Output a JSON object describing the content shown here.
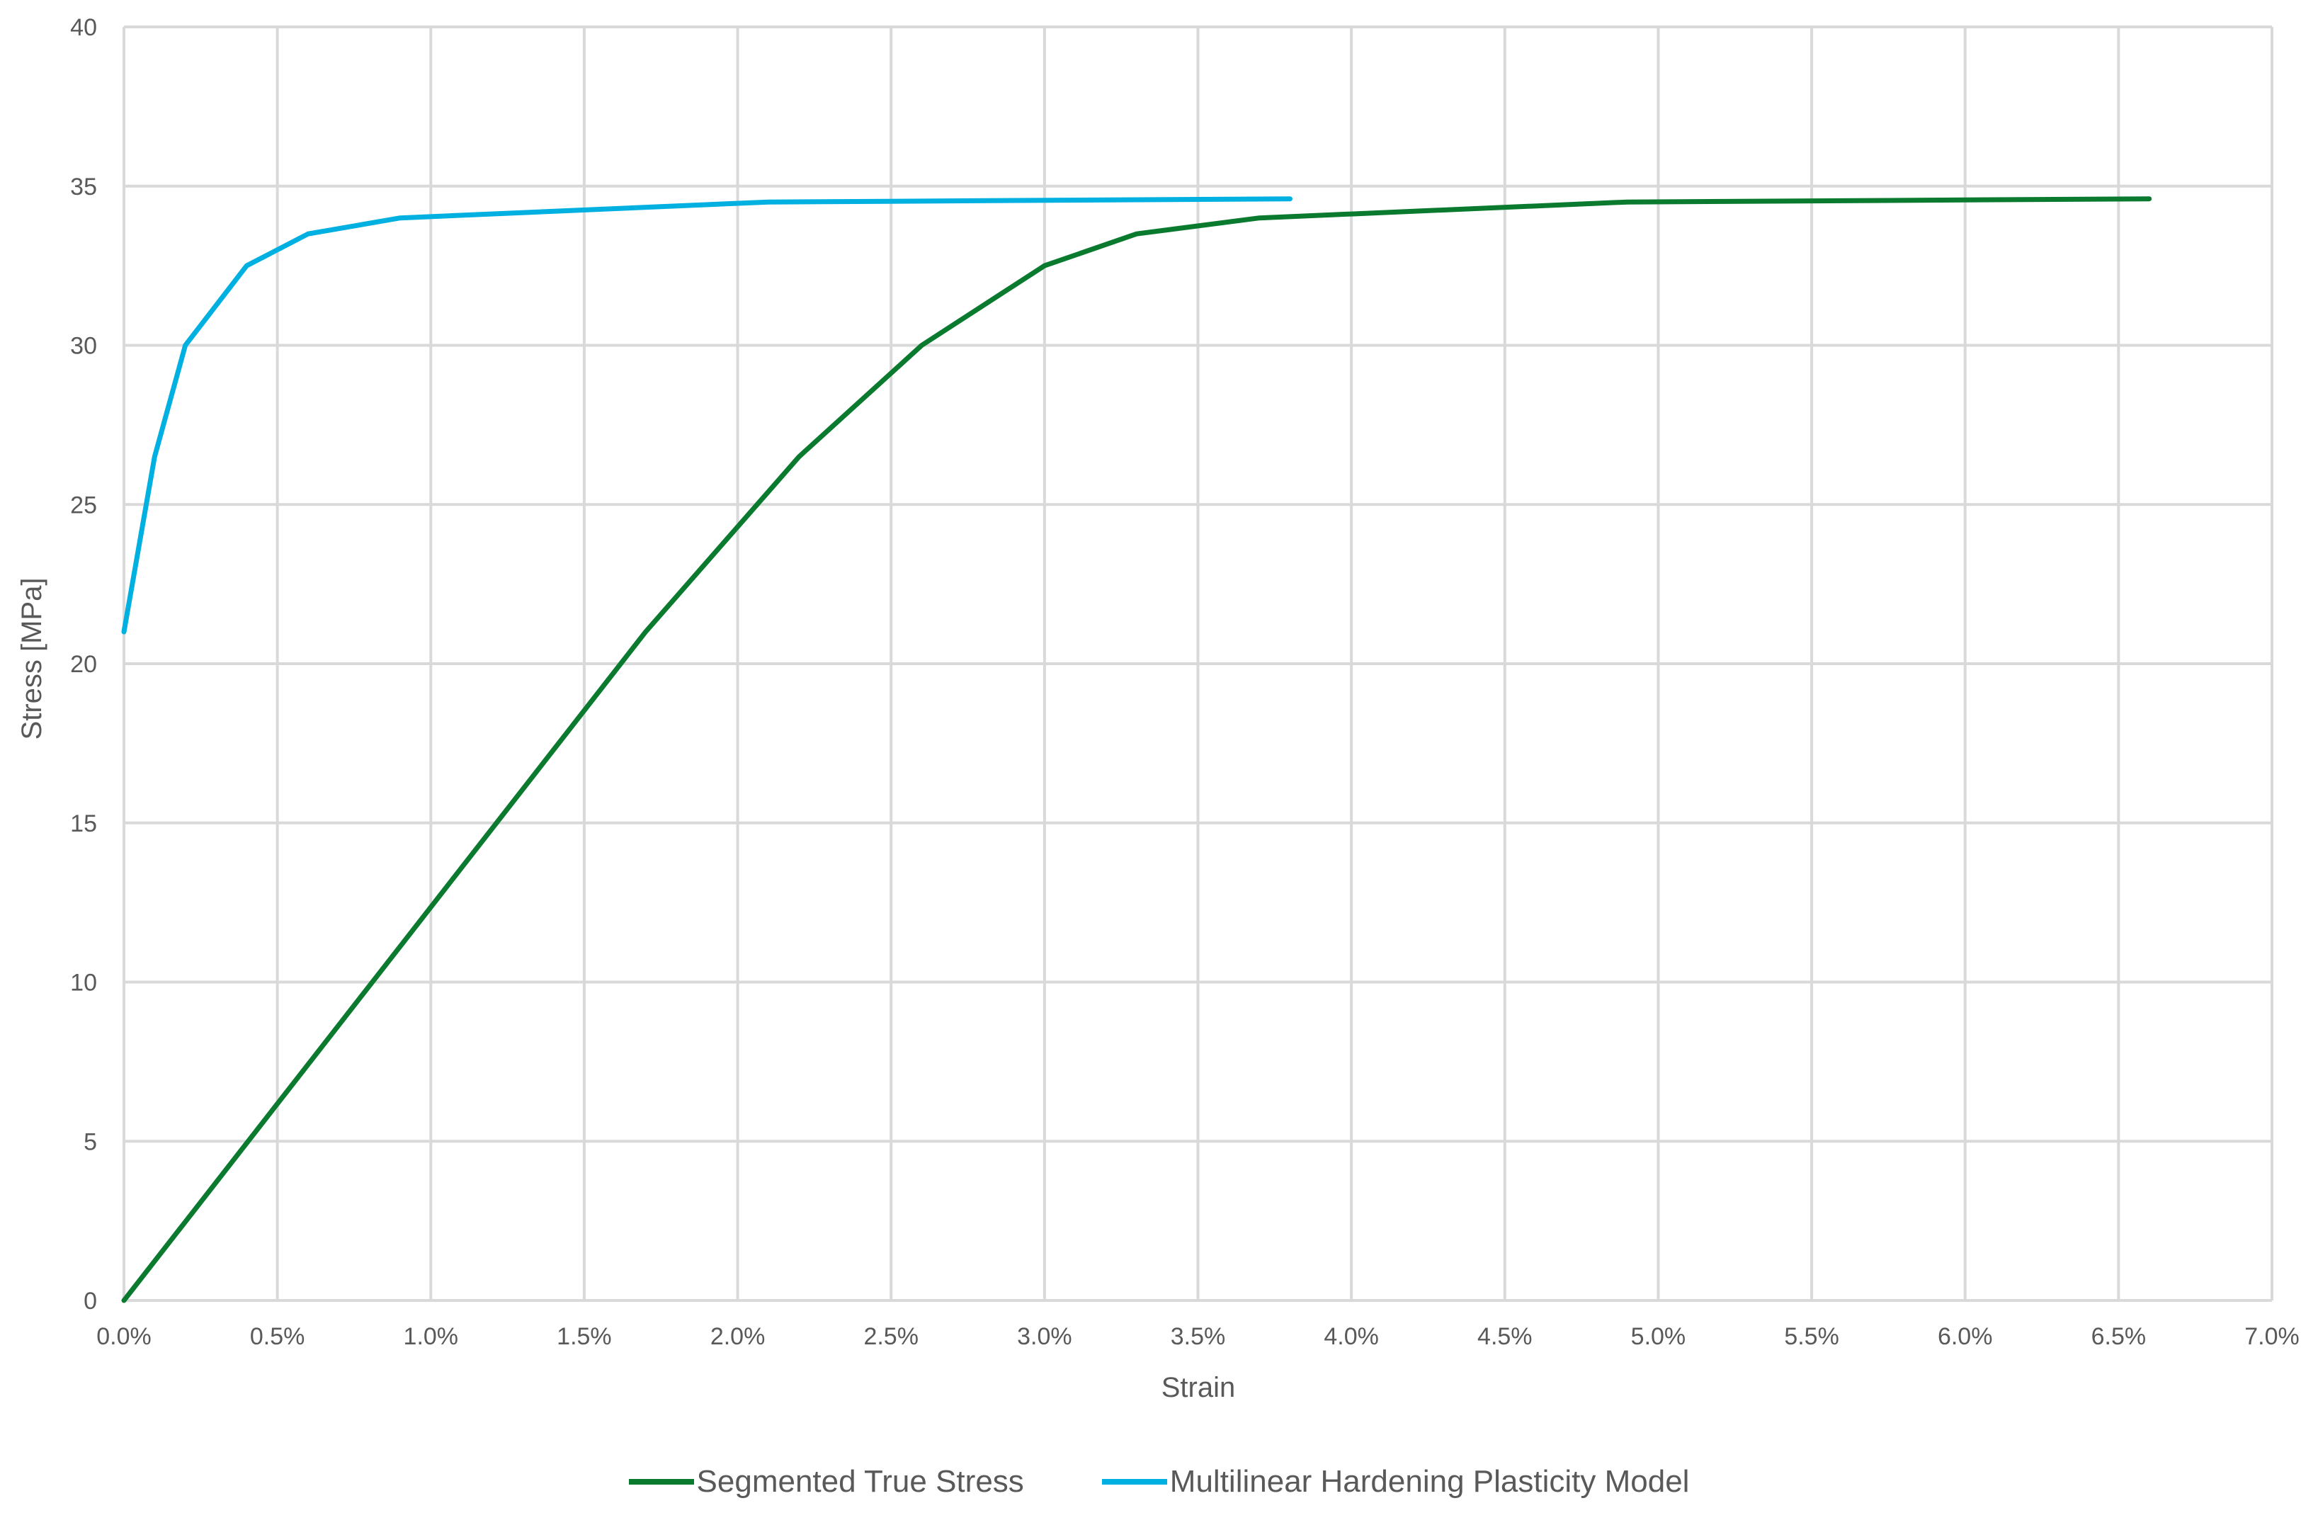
{
  "chart_data": {
    "type": "line",
    "title": "",
    "xlabel": "Strain",
    "ylabel": "Stress [MPa]",
    "xlim": [
      0,
      0.07
    ],
    "ylim": [
      0,
      40
    ],
    "x_ticks": [
      0,
      0.005,
      0.01,
      0.015,
      0.02,
      0.025,
      0.03,
      0.035,
      0.04,
      0.045,
      0.05,
      0.055,
      0.06,
      0.065,
      0.07
    ],
    "x_tick_labels": [
      "0.0%",
      "0.5%",
      "1.0%",
      "1.5%",
      "2.0%",
      "2.5%",
      "3.0%",
      "3.5%",
      "4.0%",
      "4.5%",
      "5.0%",
      "5.5%",
      "6.0%",
      "6.5%",
      "7.0%"
    ],
    "y_ticks": [
      0,
      5,
      10,
      15,
      20,
      25,
      30,
      35,
      40
    ],
    "y_tick_labels": [
      "0",
      "5",
      "10",
      "15",
      "20",
      "25",
      "30",
      "35",
      "40"
    ],
    "grid": true,
    "legend_position": "bottom",
    "series": [
      {
        "name": "Segmented True Stress",
        "color": "#0a7a2f",
        "x": [
          0.0,
          0.017,
          0.022,
          0.026,
          0.03,
          0.033,
          0.037,
          0.049,
          0.066
        ],
        "y": [
          0.0,
          21.0,
          26.5,
          30.0,
          32.5,
          33.5,
          34.0,
          34.5,
          34.6
        ]
      },
      {
        "name": "Multilinear Hardening Plasticity Model",
        "color": "#00b0e0",
        "x": [
          0.0,
          0.001,
          0.002,
          0.004,
          0.006,
          0.009,
          0.021,
          0.038
        ],
        "y": [
          21.0,
          26.5,
          30.0,
          32.5,
          33.5,
          34.0,
          34.5,
          34.6
        ]
      }
    ]
  },
  "colors": {
    "grid": "#d9d9d9",
    "text": "#595959",
    "background": "#ffffff"
  }
}
